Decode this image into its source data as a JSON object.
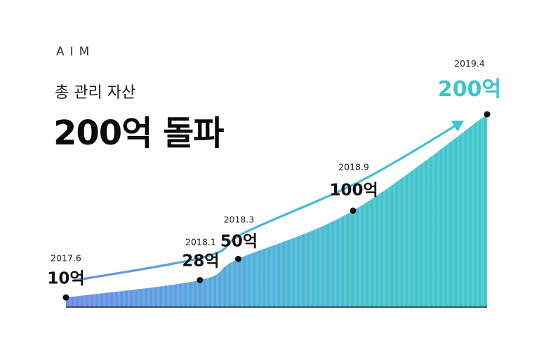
{
  "header": {
    "brand": "AIM",
    "subtitle": "총 관리 자산",
    "headline": "200억 돌파"
  },
  "colors": {
    "accent_teal": "#3cc4cb",
    "accent_blue": "#5a8ee8",
    "axis": "#222222",
    "point": "#111111"
  },
  "chart_data": {
    "type": "area",
    "title": "",
    "xlabel": "",
    "ylabel": "",
    "ylim": [
      0,
      200
    ],
    "grid": false,
    "points": [
      {
        "date": "2017.6",
        "value": 10,
        "label": "10억"
      },
      {
        "date": "2018.1",
        "value": 28,
        "label": "28억"
      },
      {
        "date": "2018.3",
        "value": 50,
        "label": "50억"
      },
      {
        "date": "2018.9",
        "value": 100,
        "label": "100억"
      },
      {
        "date": "2019.4",
        "value": 200,
        "label": "200억"
      }
    ]
  }
}
